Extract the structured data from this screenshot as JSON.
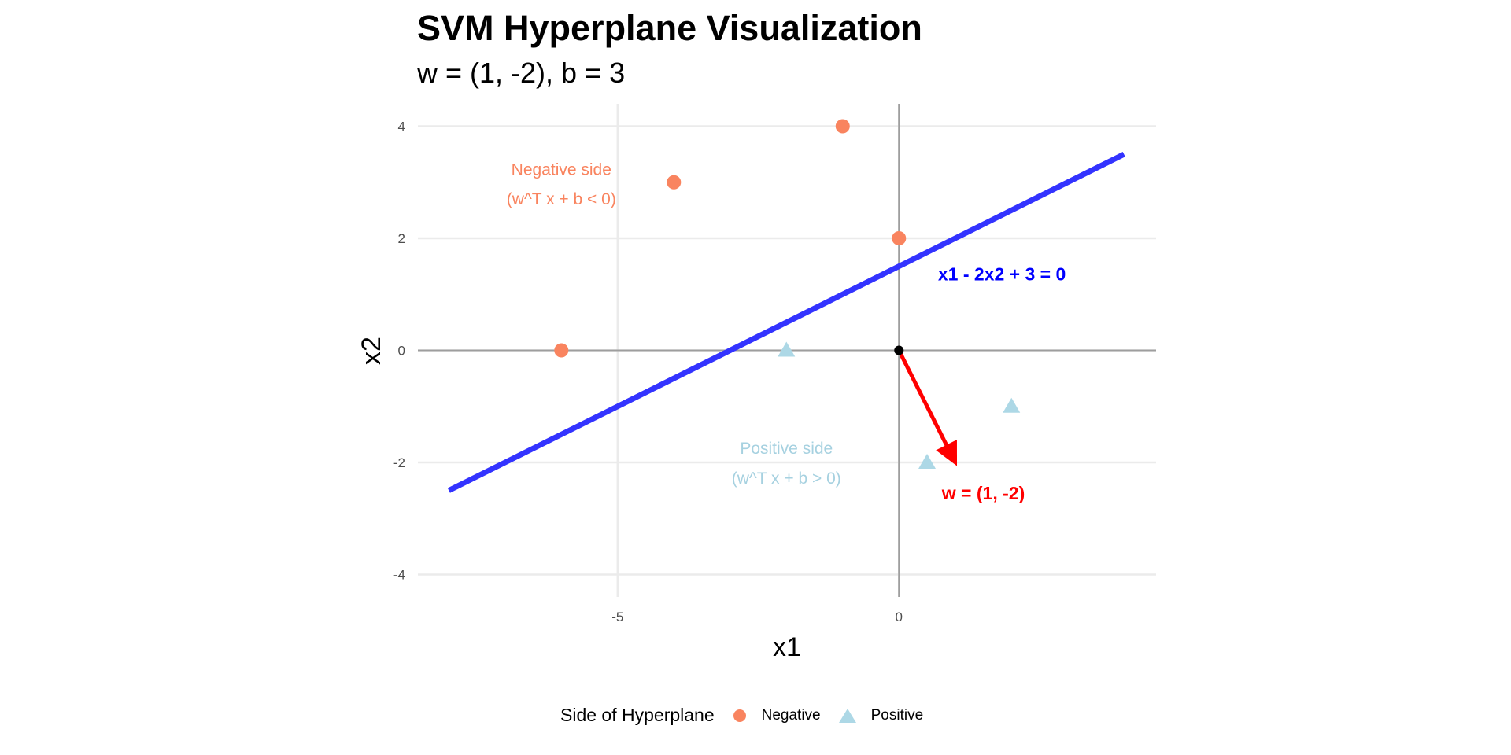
{
  "chart_data": {
    "type": "scatter",
    "title": "SVM Hyperplane Visualization",
    "subtitle": "w = (1, -2), b = 3",
    "xlabel": "x1",
    "ylabel": "x2",
    "xlim": [
      -8.55,
      4.57
    ],
    "ylim": [
      -4.4,
      4.4
    ],
    "xticks": [
      -5,
      0
    ],
    "yticks": [
      -4,
      -2,
      0,
      2,
      4
    ],
    "grid": true,
    "legend": {
      "title": "Side of Hyperplane",
      "placement": "bottom",
      "entries": [
        "Negative",
        "Positive"
      ]
    },
    "series": [
      {
        "name": "Negative",
        "shape": "circle",
        "color": "#F9845F",
        "points": [
          [
            -6,
            0
          ],
          [
            -4,
            3
          ],
          [
            -1,
            4
          ],
          [
            0,
            2
          ]
        ]
      },
      {
        "name": "Positive",
        "shape": "triangle",
        "color": "#ADD8E6",
        "points": [
          [
            -2,
            0
          ],
          [
            0.5,
            -2
          ],
          [
            2,
            -1
          ]
        ]
      }
    ],
    "hyperplane": {
      "from": [
        -8,
        -2.5
      ],
      "to": [
        4,
        3.5
      ],
      "color": "#3333FF",
      "label": "x1 - 2x2 + 3 = 0",
      "label_at": [
        1.83,
        1.36
      ]
    },
    "weight_vector": {
      "from": [
        0,
        0
      ],
      "to": [
        1,
        -2
      ],
      "color": "#FF0000",
      "label": "w = (1, -2)",
      "label_at": [
        1.5,
        -2.55
      ]
    },
    "origin": [
      0,
      0
    ],
    "annotations": [
      {
        "text": "Negative side",
        "at": [
          -6,
          3.23
        ],
        "color": "#F9845F"
      },
      {
        "text": "(w^T x + b < 0)",
        "at": [
          -6,
          2.7
        ],
        "color": "#F9845F"
      },
      {
        "text": "Positive side",
        "at": [
          -2,
          -1.75
        ],
        "color": "#A6D1E0"
      },
      {
        "text": "(w^T x + b > 0)",
        "at": [
          -2,
          -2.28
        ],
        "color": "#A6D1E0"
      }
    ]
  }
}
